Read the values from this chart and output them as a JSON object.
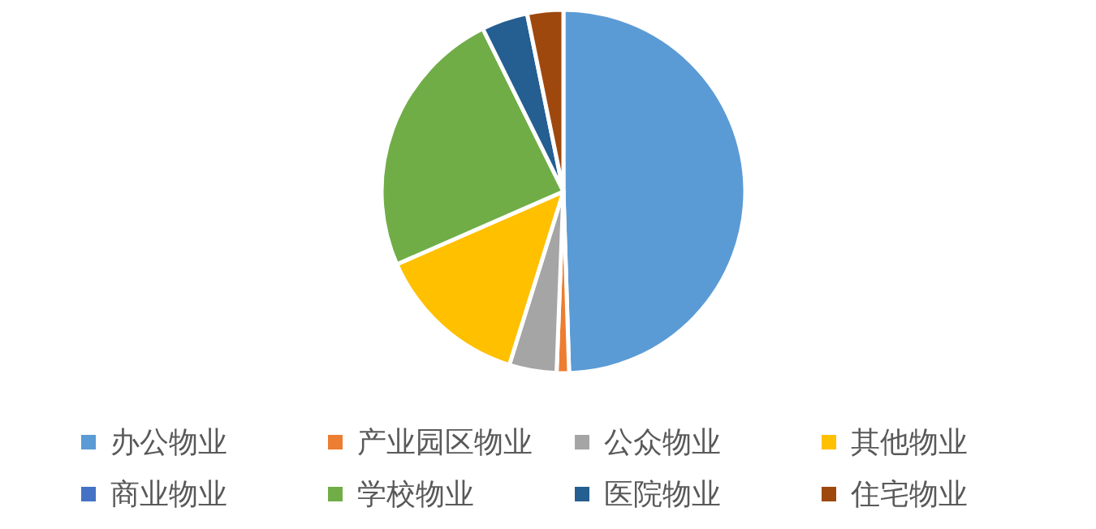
{
  "chart_data": {
    "type": "pie",
    "categories": [
      "办公物业",
      "产业园区物业",
      "公众物业",
      "其他物业",
      "商业物业",
      "学校物业",
      "医院物业",
      "住宅物业"
    ],
    "values": [
      49.4,
      1.1,
      4.2,
      13.6,
      null,
      24.2,
      4.1,
      3.2
    ],
    "colors": [
      "#5b9bd5",
      "#ed7d31",
      "#a5a5a5",
      "#ffc000",
      "#4472c4",
      "#70ad47",
      "#255e91",
      "#9e480e"
    ],
    "legend": "bottom"
  }
}
